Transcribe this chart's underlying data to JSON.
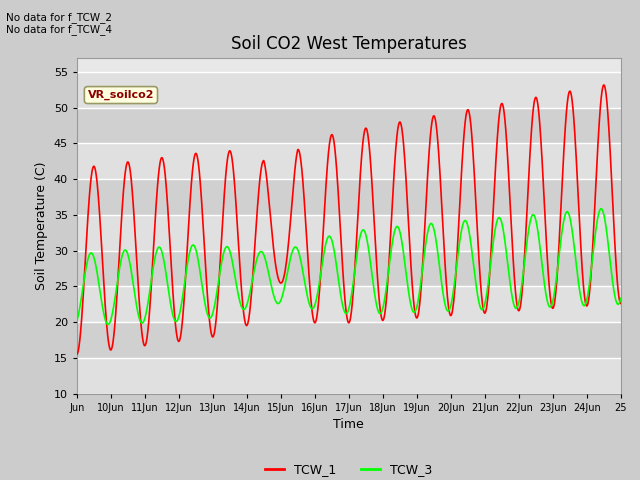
{
  "title": "Soil CO2 West Temperatures",
  "xlabel": "Time",
  "ylabel": "Soil Temperature (C)",
  "ylim": [
    10,
    57
  ],
  "yticks": [
    10,
    15,
    20,
    25,
    30,
    35,
    40,
    45,
    50,
    55
  ],
  "no_data_text_1": "No data for f_TCW_2",
  "no_data_text_2": "No data for f_TCW_4",
  "vr_label": "VR_soilco2",
  "legend_labels": [
    "TCW_1",
    "TCW_3"
  ],
  "tcw1_color": "red",
  "tcw3_color": "lime",
  "fig_bg": "#cccccc",
  "axes_bg": "#e8e8e8",
  "xtick_labels": [
    "Jun",
    "10Jun",
    "11Jun",
    "12Jun",
    "13Jun",
    "14Jun",
    "15Jun",
    "16Jun",
    "17Jun",
    "18Jun",
    "19Jun",
    "20Jun",
    "21Jun",
    "22Jun",
    "23Jun",
    "24Jun",
    "25"
  ],
  "title_fontsize": 12,
  "label_fontsize": 9,
  "tick_fontsize": 8,
  "line_width": 1.2,
  "grid_color": "white",
  "grid_linewidth": 1.0,
  "band_colors": [
    "#e0e0e0",
    "#d0d0d0"
  ]
}
